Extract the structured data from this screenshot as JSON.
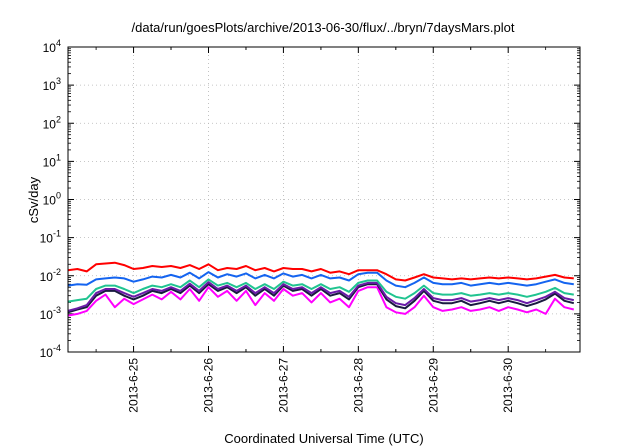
{
  "chart_data": {
    "type": "line",
    "title": "/data/run/goesPlots/archive/2013-06-30/flux/../bryn/7daysMars.plot",
    "xlabel": "Coordinated Universal Time (UTC)",
    "ylabel": "cSv/day",
    "yscale": "log",
    "ylim": [
      0.0001,
      10000
    ],
    "y_ticks": [
      {
        "base": "10",
        "exp": "-4"
      },
      {
        "base": "10",
        "exp": "-3"
      },
      {
        "base": "10",
        "exp": "-2"
      },
      {
        "base": "10",
        "exp": "-1"
      },
      {
        "base": "10",
        "exp": "0"
      },
      {
        "base": "10",
        "exp": "1"
      },
      {
        "base": "10",
        "exp": "2"
      },
      {
        "base": "10",
        "exp": "3"
      },
      {
        "base": "10",
        "exp": "4"
      }
    ],
    "xlim": [
      "2013-06-24 03:00",
      "2013-06-30 23:00"
    ],
    "x_ticks": [
      "2013-6-25",
      "2013-6-26",
      "2013-6-27",
      "2013-6-28",
      "2013-6-29",
      "2013-6-30"
    ],
    "grid": true,
    "x": [
      "06-24 03:00",
      "06-24 06:00",
      "06-24 09:00",
      "06-24 12:00",
      "06-24 15:00",
      "06-24 18:00",
      "06-24 21:00",
      "06-25 00:00",
      "06-25 03:00",
      "06-25 06:00",
      "06-25 09:00",
      "06-25 12:00",
      "06-25 15:00",
      "06-25 18:00",
      "06-25 21:00",
      "06-26 00:00",
      "06-26 03:00",
      "06-26 06:00",
      "06-26 09:00",
      "06-26 12:00",
      "06-26 15:00",
      "06-26 18:00",
      "06-26 21:00",
      "06-27 00:00",
      "06-27 03:00",
      "06-27 06:00",
      "06-27 09:00",
      "06-27 12:00",
      "06-27 15:00",
      "06-27 18:00",
      "06-27 21:00",
      "06-28 00:00",
      "06-28 03:00",
      "06-28 06:00",
      "06-28 09:00",
      "06-28 12:00",
      "06-28 15:00",
      "06-28 18:00",
      "06-28 21:00",
      "06-29 00:00",
      "06-29 03:00",
      "06-29 06:00",
      "06-29 09:00",
      "06-29 12:00",
      "06-29 15:00",
      "06-29 18:00",
      "06-29 21:00",
      "06-30 00:00",
      "06-30 03:00",
      "06-30 06:00",
      "06-30 09:00",
      "06-30 12:00",
      "06-30 15:00",
      "06-30 18:00",
      "06-30 21:00"
    ],
    "series": [
      {
        "color": "#ff0000",
        "values": [
          0.014,
          0.015,
          0.013,
          0.02,
          0.021,
          0.022,
          0.019,
          0.015,
          0.016,
          0.018,
          0.017,
          0.018,
          0.016,
          0.019,
          0.015,
          0.02,
          0.014,
          0.016,
          0.015,
          0.018,
          0.014,
          0.016,
          0.013,
          0.016,
          0.015,
          0.015,
          0.013,
          0.015,
          0.012,
          0.013,
          0.011,
          0.014,
          0.014,
          0.014,
          0.011,
          0.008,
          0.0075,
          0.009,
          0.011,
          0.009,
          0.0085,
          0.008,
          0.0085,
          0.008,
          0.0085,
          0.009,
          0.0085,
          0.009,
          0.0085,
          0.008,
          0.0085,
          0.0095,
          0.0105,
          0.009,
          0.0085
        ]
      },
      {
        "color": "#1464f0",
        "values": [
          0.0055,
          0.006,
          0.0058,
          0.008,
          0.0085,
          0.009,
          0.0085,
          0.007,
          0.008,
          0.0095,
          0.009,
          0.0105,
          0.009,
          0.012,
          0.0085,
          0.0125,
          0.009,
          0.011,
          0.0095,
          0.0115,
          0.0085,
          0.0105,
          0.0085,
          0.0115,
          0.0095,
          0.0105,
          0.0085,
          0.0105,
          0.0085,
          0.009,
          0.0075,
          0.011,
          0.012,
          0.012,
          0.0075,
          0.0055,
          0.005,
          0.0065,
          0.009,
          0.0065,
          0.006,
          0.006,
          0.0065,
          0.0055,
          0.006,
          0.0065,
          0.006,
          0.0065,
          0.006,
          0.0055,
          0.006,
          0.007,
          0.008,
          0.0065,
          0.006
        ]
      },
      {
        "color": "#20c490",
        "values": [
          0.0021,
          0.0023,
          0.0025,
          0.0045,
          0.0055,
          0.0055,
          0.0045,
          0.0035,
          0.0045,
          0.0055,
          0.005,
          0.006,
          0.005,
          0.0075,
          0.005,
          0.008,
          0.0055,
          0.0065,
          0.005,
          0.0065,
          0.0045,
          0.006,
          0.0045,
          0.007,
          0.0055,
          0.006,
          0.0045,
          0.006,
          0.0045,
          0.005,
          0.0038,
          0.0065,
          0.0075,
          0.0075,
          0.0038,
          0.0028,
          0.0025,
          0.0035,
          0.0055,
          0.0035,
          0.0032,
          0.0032,
          0.0035,
          0.003,
          0.0032,
          0.0035,
          0.0032,
          0.0035,
          0.0032,
          0.0028,
          0.0032,
          0.0038,
          0.0048,
          0.0035,
          0.0032
        ]
      },
      {
        "color": "#6a1aa8",
        "values": [
          0.0012,
          0.0014,
          0.0017,
          0.0035,
          0.0045,
          0.0045,
          0.0035,
          0.0028,
          0.0035,
          0.0045,
          0.004,
          0.005,
          0.004,
          0.0062,
          0.004,
          0.0068,
          0.0045,
          0.0055,
          0.004,
          0.0055,
          0.0035,
          0.005,
          0.0035,
          0.006,
          0.0045,
          0.005,
          0.0035,
          0.005,
          0.0035,
          0.004,
          0.0028,
          0.0055,
          0.0065,
          0.0065,
          0.0028,
          0.0019,
          0.0017,
          0.0026,
          0.0045,
          0.0026,
          0.0023,
          0.0023,
          0.0026,
          0.0021,
          0.0023,
          0.0026,
          0.0023,
          0.0026,
          0.0023,
          0.0019,
          0.0023,
          0.0028,
          0.0038,
          0.0026,
          0.0023
        ]
      },
      {
        "color": "#1a1a40",
        "values": [
          0.0011,
          0.0013,
          0.0015,
          0.003,
          0.004,
          0.004,
          0.003,
          0.0024,
          0.003,
          0.004,
          0.0035,
          0.0045,
          0.0035,
          0.0055,
          0.0035,
          0.006,
          0.004,
          0.005,
          0.0035,
          0.005,
          0.003,
          0.0045,
          0.003,
          0.0055,
          0.004,
          0.0045,
          0.003,
          0.0045,
          0.003,
          0.0035,
          0.0024,
          0.005,
          0.006,
          0.006,
          0.0024,
          0.0016,
          0.0014,
          0.0022,
          0.004,
          0.0022,
          0.0019,
          0.0019,
          0.0022,
          0.0017,
          0.0019,
          0.0022,
          0.0019,
          0.0022,
          0.0019,
          0.0016,
          0.0019,
          0.0024,
          0.0034,
          0.0022,
          0.0019
        ]
      },
      {
        "color": "#ff00ff",
        "values": [
          0.0009,
          0.001,
          0.0012,
          0.0022,
          0.0032,
          0.0015,
          0.0025,
          0.0018,
          0.0024,
          0.0032,
          0.0024,
          0.0038,
          0.0024,
          0.0045,
          0.0022,
          0.005,
          0.0028,
          0.004,
          0.0022,
          0.004,
          0.0017,
          0.0035,
          0.0022,
          0.0045,
          0.003,
          0.0035,
          0.002,
          0.0035,
          0.002,
          0.0025,
          0.0015,
          0.004,
          0.005,
          0.005,
          0.0015,
          0.0011,
          0.001,
          0.0015,
          0.003,
          0.0015,
          0.0012,
          0.0013,
          0.0015,
          0.0012,
          0.0013,
          0.0015,
          0.0012,
          0.0015,
          0.0013,
          0.0011,
          0.0013,
          0.001,
          0.0025,
          0.0015,
          0.0013
        ]
      }
    ]
  }
}
